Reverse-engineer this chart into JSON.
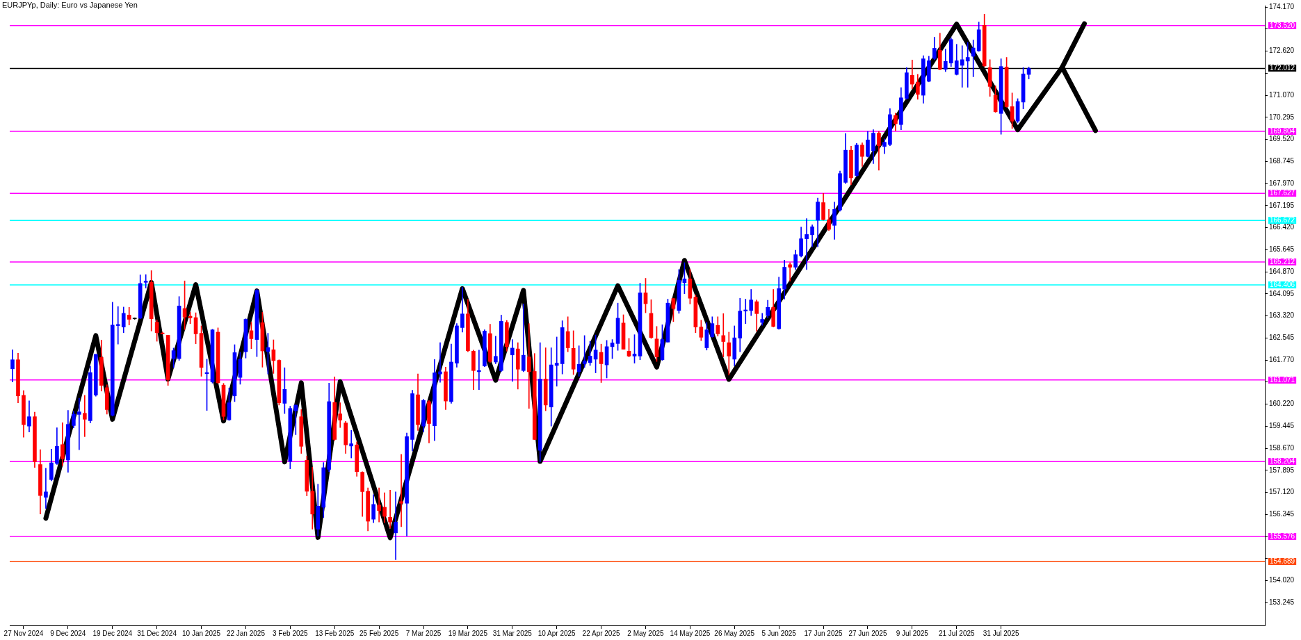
{
  "chart_data": {
    "type": "candlestick",
    "title": "EURJPYp, Daily: Euro vs Japanese Yen",
    "categories": [
      null,
      null,
      "27 Nov 2024",
      null,
      null,
      null,
      null,
      null,
      null,
      null,
      "9 Dec 2024",
      null,
      null,
      null,
      null,
      null,
      null,
      null,
      "19 Dec 2024",
      null,
      null,
      null,
      null,
      null,
      null,
      null,
      "31 Dec 2024",
      null,
      null,
      null,
      null,
      null,
      null,
      null,
      "10 Jan 2025",
      null,
      null,
      null,
      null,
      null,
      null,
      null,
      "22 Jan 2025",
      null,
      null,
      null,
      null,
      null,
      null,
      null,
      "3 Feb 2025",
      null,
      null,
      null,
      null,
      null,
      null,
      null,
      "13 Feb 2025",
      null,
      null,
      null,
      null,
      null,
      null,
      null,
      "25 Feb 2025",
      null,
      null,
      null,
      null,
      null,
      null,
      null,
      "7 Mar 2025",
      null,
      null,
      null,
      null,
      null,
      null,
      null,
      "19 Mar 2025",
      null,
      null,
      null,
      null,
      null,
      null,
      null,
      "31 Mar 2025",
      null,
      null,
      null,
      null,
      null,
      null,
      null,
      "10 Apr 2025",
      null,
      null,
      null,
      null,
      null,
      null,
      null,
      "22 Apr 2025",
      null,
      null,
      null,
      null,
      null,
      null,
      null,
      "2 May 2025",
      null,
      null,
      null,
      null,
      null,
      null,
      null,
      "14 May 2025",
      null,
      null,
      null,
      null,
      null,
      null,
      null,
      "26 May 2025",
      null,
      null,
      null,
      null,
      null,
      null,
      null,
      "5 Jun 2025",
      null,
      null,
      null,
      null,
      null,
      null,
      null,
      "17 Jun 2025",
      null,
      null,
      null,
      null,
      null,
      null,
      null,
      "27 Jun 2025",
      null,
      null,
      null,
      null,
      null,
      null,
      null,
      "9 Jul 2025",
      null,
      null,
      null,
      null,
      null,
      null,
      null,
      "21 Jul 2025",
      null,
      null,
      null,
      null,
      null,
      null,
      null,
      "31 Jul 2025",
      null,
      null,
      null,
      null,
      null,
      null,
      null,
      null,
      null,
      null,
      null,
      null,
      null,
      null,
      null,
      null,
      null,
      null,
      null,
      null,
      null,
      null,
      null,
      null,
      null,
      null,
      null,
      null,
      null,
      null,
      null,
      null,
      null,
      null,
      null,
      null,
      null,
      null,
      null,
      null,
      null,
      null,
      null,
      null,
      null,
      null,
      null
    ],
    "ohlc": [
      [
        161.46,
        162.13,
        161.0,
        161.78
      ],
      [
        161.78,
        162.01,
        160.27,
        160.51
      ],
      [
        160.53,
        160.7,
        159.06,
        159.5
      ],
      [
        159.45,
        160.34,
        159.24,
        159.78
      ],
      [
        159.78,
        159.94,
        158.0,
        158.2
      ],
      [
        158.1,
        158.62,
        156.36,
        157.01
      ],
      [
        156.95,
        157.97,
        156.56,
        157.14
      ],
      [
        157.57,
        158.64,
        157.53,
        158.16
      ],
      [
        158.14,
        159.39,
        158.1,
        158.74
      ],
      [
        158.8,
        159.57,
        158.06,
        158.3
      ],
      [
        158.26,
        160.0,
        157.83,
        159.51
      ],
      [
        159.47,
        159.97,
        159.39,
        159.87
      ],
      [
        159.86,
        160.43,
        158.62,
        159.95
      ],
      [
        159.9,
        160.53,
        159.08,
        159.69
      ],
      [
        159.64,
        161.55,
        159.56,
        161.33
      ],
      [
        160.54,
        161.97,
        160.5,
        161.97
      ],
      [
        161.86,
        162.47,
        160.68,
        160.88
      ],
      [
        160.8,
        160.9,
        159.87,
        160.03
      ],
      [
        159.83,
        163.8,
        159.8,
        163.0
      ],
      [
        162.98,
        163.65,
        162.33,
        163.02
      ],
      [
        162.93,
        163.63,
        162.73,
        163.41
      ],
      [
        163.35,
        163.62,
        163.0,
        163.2
      ],
      [
        163.22,
        163.25,
        163.2,
        163.22
      ],
      [
        163.24,
        164.76,
        163.22,
        164.46
      ],
      [
        164.5,
        164.77,
        164.3,
        164.54
      ],
      [
        164.5,
        164.91,
        162.79,
        163.22
      ],
      [
        163.1,
        163.18,
        162.43,
        162.73
      ],
      [
        162.72,
        162.75,
        162.69,
        162.69
      ],
      [
        162.64,
        162.64,
        160.88,
        161.08
      ],
      [
        161.82,
        162.19,
        161.5,
        162.1
      ],
      [
        161.82,
        164.0,
        161.76,
        163.67
      ],
      [
        163.58,
        164.55,
        162.84,
        163.28
      ],
      [
        163.31,
        163.45,
        163.05,
        163.25
      ],
      [
        163.26,
        163.43,
        162.34,
        162.69
      ],
      [
        162.71,
        162.97,
        161.2,
        161.51
      ],
      [
        161.29,
        161.8,
        160.0,
        161.33
      ],
      [
        161.0,
        162.85,
        160.96,
        162.83
      ],
      [
        162.75,
        162.9,
        160.95,
        160.97
      ],
      [
        160.89,
        160.95,
        159.67,
        159.79
      ],
      [
        159.67,
        160.79,
        159.65,
        160.27
      ],
      [
        160.51,
        162.31,
        160.31,
        162.03
      ],
      [
        161.16,
        162.05,
        160.92,
        161.8
      ],
      [
        162.06,
        163.22,
        161.84,
        163.2
      ],
      [
        162.8,
        163.1,
        162.17,
        162.52
      ],
      [
        162.49,
        164.25,
        161.89,
        164.22
      ],
      [
        163.08,
        163.45,
        161.52,
        162.09
      ],
      [
        162.07,
        162.71,
        161.28,
        162.21
      ],
      [
        162.13,
        162.48,
        161.3,
        161.75
      ],
      [
        161.76,
        161.78,
        160.19,
        160.27
      ],
      [
        160.25,
        161.5,
        159.89,
        160.74
      ],
      [
        158.21,
        160.15,
        157.95,
        160.07
      ],
      [
        159.99,
        160.19,
        159.15,
        160.19
      ],
      [
        159.78,
        160.03,
        158.49,
        158.74
      ],
      [
        158.25,
        158.4,
        157.0,
        157.16
      ],
      [
        157.16,
        158.01,
        155.83,
        156.36
      ],
      [
        155.83,
        157.41,
        155.59,
        156.64
      ],
      [
        156.6,
        158.17,
        156.24,
        157.99
      ],
      [
        157.93,
        160.96,
        157.85,
        160.31
      ],
      [
        160.28,
        161.18,
        158.95,
        158.98
      ],
      [
        159.88,
        160.27,
        159.4,
        159.66
      ],
      [
        159.56,
        159.62,
        158.49,
        158.79
      ],
      [
        158.75,
        159.3,
        158.33,
        158.83
      ],
      [
        158.79,
        158.9,
        157.69,
        157.85
      ],
      [
        157.83,
        157.85,
        156.28,
        157.15
      ],
      [
        157.16,
        157.28,
        155.77,
        156.11
      ],
      [
        156.18,
        157.04,
        156.06,
        156.7
      ],
      [
        156.68,
        157.28,
        156.08,
        156.48
      ],
      [
        156.6,
        157.11,
        156.06,
        156.28
      ],
      [
        156.25,
        157.2,
        155.87,
        156.08
      ],
      [
        155.7,
        157.14,
        154.76,
        156.08
      ],
      [
        156.8,
        158.46,
        155.92,
        156.74
      ],
      [
        156.74,
        159.21,
        155.59,
        159.08
      ],
      [
        158.98,
        160.71,
        158.58,
        160.59
      ],
      [
        160.55,
        161.28,
        159.3,
        159.5
      ],
      [
        159.45,
        160.39,
        159.25,
        160.35
      ],
      [
        160.31,
        160.35,
        158.86,
        159.54
      ],
      [
        159.46,
        161.79,
        158.94,
        161.32
      ],
      [
        161.28,
        162.38,
        160.99,
        161.36
      ],
      [
        161.36,
        161.52,
        160.03,
        160.33
      ],
      [
        160.31,
        162.33,
        160.25,
        161.7
      ],
      [
        161.66,
        163.05,
        161.52,
        162.97
      ],
      [
        162.91,
        164.32,
        162.75,
        163.39
      ],
      [
        163.39,
        163.9,
        162.06,
        162.1
      ],
      [
        162.08,
        162.12,
        160.73,
        161.4
      ],
      [
        161.36,
        162.12,
        160.73,
        161.4
      ],
      [
        161.56,
        162.83,
        161.54,
        162.79
      ],
      [
        162.7,
        163.03,
        161.68,
        161.72
      ],
      [
        161.7,
        162.61,
        161.64,
        161.9
      ],
      [
        161.4,
        163.35,
        161.36,
        163.13
      ],
      [
        163.09,
        163.16,
        162.08,
        162.24
      ],
      [
        161.95,
        162.49,
        161.02,
        162.19
      ],
      [
        162.16,
        162.38,
        160.75,
        161.45
      ],
      [
        161.4,
        163.74,
        161.36,
        161.94
      ],
      [
        161.88,
        163.05,
        160.07,
        161.36
      ],
      [
        161.37,
        162.0,
        158.98,
        158.98
      ],
      [
        158.6,
        162.38,
        158.2,
        161.1
      ],
      [
        161.1,
        162.2,
        159.99,
        160.19
      ],
      [
        160.12,
        162.2,
        159.45,
        161.6
      ],
      [
        161.58,
        162.58,
        160.85,
        161.66
      ],
      [
        161.64,
        163.15,
        161.28,
        162.91
      ],
      [
        162.77,
        163.29,
        162.06,
        162.2
      ],
      [
        162.18,
        162.8,
        161.26,
        161.45
      ],
      [
        161.36,
        162.27,
        161.2,
        161.62
      ],
      [
        161.64,
        162.63,
        161.51,
        161.74
      ],
      [
        161.68,
        162.43,
        161.58,
        161.91
      ],
      [
        161.8,
        162.65,
        161.32,
        162.12
      ],
      [
        162.04,
        162.33,
        160.98,
        161.64
      ],
      [
        161.6,
        162.46,
        161.14,
        162.24
      ],
      [
        162.24,
        162.49,
        161.82,
        162.37
      ],
      [
        162.35,
        163.77,
        162.11,
        163.24
      ],
      [
        163.07,
        163.36,
        162.15,
        162.15
      ],
      [
        162.08,
        162.53,
        161.88,
        161.91
      ],
      [
        161.91,
        162.66,
        161.66,
        161.98
      ],
      [
        161.91,
        164.47,
        161.78,
        164.13
      ],
      [
        164.13,
        164.64,
        163.43,
        163.75
      ],
      [
        163.41,
        163.89,
        162.53,
        162.56
      ],
      [
        162.51,
        162.95,
        161.72,
        161.88
      ],
      [
        161.78,
        163.01,
        161.76,
        162.49
      ],
      [
        162.4,
        163.91,
        162.4,
        163.77
      ],
      [
        163.93,
        163.93,
        163.12,
        163.58
      ],
      [
        163.51,
        164.95,
        163.41,
        164.57
      ],
      [
        164.49,
        165.19,
        164.1,
        164.62
      ],
      [
        164.62,
        164.95,
        163.74,
        163.94
      ],
      [
        163.98,
        164.06,
        162.73,
        162.93
      ],
      [
        162.93,
        163.17,
        162.45,
        162.57
      ],
      [
        162.2,
        163.09,
        162.12,
        162.83
      ],
      [
        162.59,
        163.29,
        162.57,
        163.05
      ],
      [
        162.99,
        163.29,
        162.61,
        162.69
      ],
      [
        162.63,
        163.4,
        161.88,
        162.42
      ],
      [
        162.38,
        162.75,
        161.24,
        161.91
      ],
      [
        161.8,
        162.97,
        161.56,
        162.55
      ],
      [
        162.54,
        163.94,
        162.06,
        163.49
      ],
      [
        163.49,
        163.91,
        163.05,
        163.53
      ],
      [
        163.51,
        164.25,
        163.33,
        163.88
      ],
      [
        163.82,
        163.88,
        162.78,
        163.4
      ],
      [
        163.09,
        163.41,
        162.99,
        163.2
      ],
      [
        163.33,
        163.87,
        163.25,
        163.62
      ],
      [
        163.62,
        164.25,
        162.93,
        162.95
      ],
      [
        162.87,
        164.68,
        162.85,
        164.28
      ],
      [
        164.26,
        165.28,
        163.91,
        165.03
      ],
      [
        165.12,
        165.19,
        164.54,
        165.03
      ],
      [
        165.03,
        165.63,
        164.95,
        165.47
      ],
      [
        165.43,
        166.44,
        165.39,
        166.03
      ],
      [
        166.03,
        166.74,
        164.95,
        166.18
      ],
      [
        166.17,
        166.52,
        165.75,
        166.45
      ],
      [
        166.68,
        167.46,
        165.75,
        167.32
      ],
      [
        167.3,
        167.62,
        166.68,
        166.7
      ],
      [
        166.7,
        167.06,
        166.32,
        166.36
      ],
      [
        166.5,
        167.32,
        166.01,
        167.06
      ],
      [
        167.04,
        168.41,
        167.0,
        168.32
      ],
      [
        168.01,
        169.73,
        167.97,
        169.14
      ],
      [
        169.14,
        169.28,
        167.93,
        168.17
      ],
      [
        168.25,
        169.38,
        168.21,
        169.32
      ],
      [
        169.32,
        169.4,
        168.57,
        168.92
      ],
      [
        168.92,
        169.8,
        168.9,
        169.5
      ],
      [
        169.12,
        169.86,
        168.67,
        169.74
      ],
      [
        169.74,
        169.8,
        168.44,
        169.3
      ],
      [
        169.27,
        169.54,
        169.02,
        169.42
      ],
      [
        169.34,
        170.6,
        169.3,
        170.39
      ],
      [
        170.36,
        170.44,
        169.82,
        170.07
      ],
      [
        170.04,
        171.34,
        169.86,
        170.98
      ],
      [
        170.96,
        172.04,
        170.93,
        171.86
      ],
      [
        171.77,
        172.31,
        171.3,
        171.46
      ],
      [
        171.52,
        171.8,
        170.93,
        171.1
      ],
      [
        171.07,
        172.46,
        170.79,
        172.35
      ],
      [
        171.56,
        172.44,
        171.54,
        172.28
      ],
      [
        172.36,
        173.11,
        172.32,
        172.72
      ],
      [
        172.65,
        173.25,
        171.96,
        171.98
      ],
      [
        171.98,
        172.69,
        171.9,
        172.26
      ],
      [
        172.2,
        173.09,
        172.08,
        173.03
      ],
      [
        171.8,
        172.86,
        171.78,
        172.28
      ],
      [
        172.12,
        172.81,
        171.35,
        172.32
      ],
      [
        172.27,
        172.93,
        171.35,
        172.4
      ],
      [
        172.44,
        173.01,
        171.72,
        172.73
      ],
      [
        172.63,
        173.64,
        172.61,
        173.37
      ],
      [
        173.53,
        173.92,
        172.08,
        172.1
      ],
      [
        172.04,
        172.32,
        171.03,
        171.38
      ],
      [
        171.07,
        171.4,
        170.47,
        170.49
      ],
      [
        170.43,
        172.35,
        169.7,
        172.08
      ],
      [
        172.06,
        172.4,
        170.65,
        170.67
      ],
      [
        170.67,
        171.15,
        169.9,
        170.16
      ],
      [
        170.16,
        170.95,
        170.11,
        170.85
      ],
      [
        170.83,
        172.04,
        170.59,
        171.82
      ],
      [
        171.8,
        172.06,
        171.64,
        172.01
      ],
      null,
      null,
      null,
      null,
      null,
      null,
      null,
      null,
      null,
      null,
      null,
      null,
      null,
      null,
      null,
      null,
      null,
      null,
      null,
      null,
      null,
      null,
      null,
      null,
      null,
      null,
      null,
      null,
      null,
      null,
      null,
      null,
      null,
      null,
      null,
      null,
      null,
      null,
      null,
      null,
      null,
      null
    ],
    "colors": [
      "#0000ff",
      "#ff0000",
      "#ff0000",
      "#0000ff",
      "#ff0000",
      "#ff0000",
      "#0000ff",
      "#0000ff",
      "#0000ff",
      "#ff0000",
      "#0000ff",
      "#0000ff",
      "#0000ff",
      "#ff0000",
      "#0000ff",
      "#0000ff",
      "#ff0000",
      "#ff0000",
      "#0000ff",
      "#0000ff",
      "#0000ff",
      "#ff0000",
      "#000000",
      "#0000ff",
      "#0000ff",
      "#ff0000",
      "#ff0000",
      "#ff0000",
      "#ff0000",
      "#0000ff",
      "#0000ff",
      "#ff0000",
      "#ff0000",
      "#ff0000",
      "#ff0000",
      "#0000ff",
      "#0000ff",
      "#ff0000",
      "#ff0000",
      "#0000ff",
      "#0000ff",
      "#0000ff",
      "#0000ff",
      "#ff0000",
      "#0000ff",
      "#ff0000",
      "#0000ff",
      "#ff0000",
      "#ff0000",
      "#0000ff",
      "#0000ff",
      "#0000ff",
      "#ff0000",
      "#ff0000",
      "#ff0000",
      "#0000ff",
      "#0000ff",
      "#0000ff",
      "#ff0000",
      "#ff0000",
      "#ff0000",
      "#0000ff",
      "#ff0000",
      "#ff0000",
      "#ff0000",
      "#0000ff",
      "#ff0000",
      "#ff0000",
      "#ff0000",
      "#0000ff",
      "#ff0000",
      "#0000ff",
      "#0000ff",
      "#ff0000",
      "#0000ff",
      "#ff0000",
      "#0000ff",
      "#0000ff",
      "#ff0000",
      "#0000ff",
      "#0000ff",
      "#0000ff",
      "#ff0000",
      "#ff0000",
      "#0000ff",
      "#0000ff",
      "#ff0000",
      "#0000ff",
      "#0000ff",
      "#ff0000",
      "#0000ff",
      "#ff0000",
      "#0000ff",
      "#ff0000",
      "#ff0000",
      "#0000ff",
      "#ff0000",
      "#0000ff",
      "#0000ff",
      "#0000ff",
      "#ff0000",
      "#ff0000",
      "#0000ff",
      "#0000ff",
      "#0000ff",
      "#0000ff",
      "#ff0000",
      "#0000ff",
      "#0000ff",
      "#0000ff",
      "#ff0000",
      "#ff0000",
      "#0000ff",
      "#0000ff",
      "#ff0000",
      "#ff0000",
      "#ff0000",
      "#0000ff",
      "#0000ff",
      "#ff0000",
      "#0000ff",
      "#0000ff",
      "#ff0000",
      "#ff0000",
      "#ff0000",
      "#0000ff",
      "#0000ff",
      "#ff0000",
      "#ff0000",
      "#ff0000",
      "#0000ff",
      "#0000ff",
      "#0000ff",
      "#0000ff",
      "#ff0000",
      "#0000ff",
      "#0000ff",
      "#ff0000",
      "#0000ff",
      "#0000ff",
      "#ff0000",
      "#0000ff",
      "#0000ff",
      "#0000ff",
      "#0000ff",
      "#0000ff",
      "#ff0000",
      "#ff0000",
      "#0000ff",
      "#0000ff",
      "#0000ff",
      "#ff0000",
      "#0000ff",
      "#ff0000",
      "#0000ff",
      "#0000ff",
      "#ff0000",
      "#0000ff",
      "#0000ff",
      "#ff0000",
      "#0000ff",
      "#0000ff",
      "#ff0000",
      "#ff0000",
      "#0000ff",
      "#0000ff",
      "#0000ff",
      "#ff0000",
      "#0000ff",
      "#0000ff",
      "#0000ff",
      "#0000ff",
      "#0000ff",
      "#0000ff",
      "#0000ff",
      "#ff0000",
      "#ff0000",
      "#ff0000",
      "#0000ff",
      "#ff0000",
      "#ff0000",
      "#0000ff",
      "#0000ff",
      "#0000ff",
      null,
      null,
      null,
      null,
      null,
      null,
      null,
      null,
      null,
      null,
      null,
      null,
      null,
      null,
      null,
      null,
      null,
      null,
      null,
      null,
      null,
      null,
      null,
      null,
      null,
      null,
      null,
      null,
      null,
      null,
      null,
      null,
      null,
      null,
      null,
      null,
      null,
      null,
      null,
      null,
      null,
      null
    ],
    "series": [
      {
        "type": "line",
        "color": "#000000",
        "values": [
          null,
          null,
          null,
          null,
          null,
          null,
          156.21,
          null,
          null,
          null,
          null,
          null,
          null,
          null,
          null,
          162.63,
          null,
          null,
          159.69,
          null,
          null,
          null,
          null,
          null,
          null,
          164.5,
          null,
          null,
          161.1,
          null,
          null,
          null,
          null,
          164.42,
          null,
          null,
          null,
          null,
          159.63,
          null,
          null,
          null,
          null,
          null,
          164.2,
          null,
          null,
          null,
          null,
          158.19,
          null,
          null,
          160.97,
          null,
          null,
          155.54,
          null,
          null,
          null,
          161.01,
          null,
          null,
          null,
          null,
          null,
          null,
          null,
          null,
          155.53,
          null,
          null,
          null,
          null,
          null,
          null,
          null,
          null,
          null,
          null,
          null,
          null,
          164.28,
          null,
          null,
          null,
          null,
          null,
          161.06,
          null,
          null,
          null,
          null,
          164.22,
          null,
          null,
          158.21,
          null,
          null,
          null,
          null,
          null,
          null,
          null,
          null,
          null,
          null,
          null,
          null,
          null,
          164.38,
          null,
          null,
          null,
          null,
          null,
          null,
          161.52,
          null,
          null,
          null,
          null,
          165.27,
          null,
          null,
          null,
          null,
          null,
          null,
          null,
          161.09,
          null,
          null,
          null,
          null,
          null,
          null,
          null,
          null,
          null,
          null,
          null,
          null,
          null,
          null,
          null,
          null,
          null,
          null,
          null,
          null,
          null,
          null,
          null,
          null,
          null,
          null,
          null,
          null,
          null,
          null,
          null,
          null,
          null,
          null,
          null,
          null,
          null,
          null,
          null,
          null,
          173.57,
          null,
          null,
          null,
          null,
          null,
          null,
          null,
          null,
          null,
          null,
          169.86,
          null,
          null,
          null,
          null,
          null,
          null,
          null,
          172.05,
          null,
          null,
          null,
          null,
          null,
          169.83,
          null,
          null,
          null,
          null,
          null,
          null,
          null,
          null,
          null,
          null,
          null,
          null,
          null,
          null,
          null,
          null,
          null,
          null,
          null,
          null,
          null,
          null,
          null,
          null,
          null,
          null,
          null,
          null,
          null,
          null
        ]
      },
      {
        "type": "line",
        "color": "#000000",
        "values": [
          null,
          null,
          null,
          null,
          null,
          null,
          null,
          null,
          null,
          null,
          null,
          null,
          null,
          null,
          null,
          null,
          null,
          null,
          null,
          null,
          null,
          null,
          null,
          null,
          null,
          null,
          null,
          null,
          null,
          null,
          null,
          null,
          null,
          null,
          null,
          null,
          null,
          null,
          null,
          null,
          null,
          null,
          null,
          null,
          null,
          null,
          null,
          null,
          null,
          null,
          null,
          null,
          null,
          null,
          null,
          null,
          null,
          null,
          null,
          null,
          null,
          null,
          null,
          null,
          null,
          null,
          null,
          null,
          null,
          null,
          null,
          null,
          null,
          null,
          null,
          null,
          null,
          null,
          null,
          null,
          null,
          null,
          null,
          null,
          null,
          null,
          null,
          null,
          null,
          null,
          null,
          null,
          null,
          null,
          null,
          null,
          null,
          null,
          null,
          null,
          null,
          null,
          null,
          null,
          null,
          null,
          null,
          null,
          null,
          null,
          null,
          null,
          null,
          null,
          null,
          null,
          null,
          null,
          null,
          null,
          null,
          null,
          null,
          null,
          null,
          null,
          null,
          null,
          null,
          null,
          null,
          null,
          null,
          null,
          null,
          null,
          null,
          null,
          null,
          null,
          null,
          null,
          null,
          null,
          null,
          null,
          null,
          null,
          null,
          null,
          null,
          null,
          null,
          null,
          null,
          null,
          null,
          null,
          null,
          null,
          null,
          null,
          null,
          null,
          null,
          null,
          null,
          null,
          null,
          null,
          null,
          null,
          null,
          null,
          null,
          null,
          null,
          null,
          null,
          null,
          null,
          null,
          null,
          null,
          null,
          null,
          null,
          null,
          null,
          172.05,
          null,
          null,
          null,
          173.58,
          null,
          null,
          null,
          null,
          null,
          null,
          null,
          null,
          null,
          null,
          null,
          null,
          null,
          null,
          null,
          null,
          null,
          null,
          null,
          null,
          null,
          null,
          null,
          null,
          null,
          null,
          null,
          null,
          null,
          null,
          null,
          null
        ]
      }
    ],
    "ylim": [
      152.45,
      174.22
    ],
    "yticks": [
      153.245,
      {
        "value": 154.02,
        "label": "154.020"
      },
      {
        "value": 154.795,
        "label": null
      },
      {
        "value": 155.57,
        "label": null
      },
      156.345,
      {
        "value": 157.12,
        "label": "157.120"
      },
      157.895,
      {
        "value": 158.67,
        "label": "158.670"
      },
      159.445,
      {
        "value": 160.22,
        "label": "160.220"
      },
      {
        "value": 160.995,
        "label": null
      },
      {
        "value": 161.77,
        "label": "161.770"
      },
      162.545,
      {
        "value": 163.32,
        "label": "163.320"
      },
      164.095,
      {
        "value": 164.87,
        "label": "164.870"
      },
      165.645,
      {
        "value": 166.42,
        "label": "166.420"
      },
      167.195,
      {
        "value": 167.97,
        "label": "167.970"
      },
      168.745,
      {
        "value": 169.52,
        "label": "169.520"
      },
      170.295,
      {
        "value": 171.07,
        "label": "171.070"
      },
      {
        "value": 171.845,
        "label": null
      },
      {
        "value": 172.62,
        "label": "172.620"
      },
      {
        "value": 173.395,
        "label": null
      },
      {
        "value": 174.17,
        "label": "174.170"
      }
    ],
    "ref_lines": [
      {
        "axis": "y",
        "value": 173.52,
        "label": "173.520",
        "color": "#ff00ff"
      },
      {
        "axis": "y",
        "value": 172.012,
        "label": "172.012",
        "color": "#000000"
      },
      {
        "axis": "y",
        "value": 169.804,
        "label": "169.804",
        "color": "#ff00ff"
      },
      {
        "axis": "y",
        "value": 167.627,
        "label": "167.627",
        "color": "#ff00ff"
      },
      {
        "axis": "y",
        "value": 166.672,
        "label": "166.672",
        "color": "#00ffff"
      },
      {
        "axis": "y",
        "value": 165.212,
        "label": "165.212",
        "color": "#ff00ff"
      },
      {
        "axis": "y",
        "value": 164.406,
        "label": "164.406",
        "color": "#00ffff"
      },
      {
        "axis": "y",
        "value": 161.071,
        "label": "161.071",
        "color": "#ff00ff"
      },
      {
        "axis": "y",
        "value": 158.204,
        "label": "158.204",
        "color": "#ff00ff"
      },
      {
        "axis": "y",
        "value": 155.576,
        "label": "155.576",
        "color": "#ff00ff"
      },
      {
        "axis": "y",
        "value": 154.689,
        "label": "154.689",
        "color": "#ff4500"
      }
    ],
    "grid": false,
    "legend": false
  }
}
